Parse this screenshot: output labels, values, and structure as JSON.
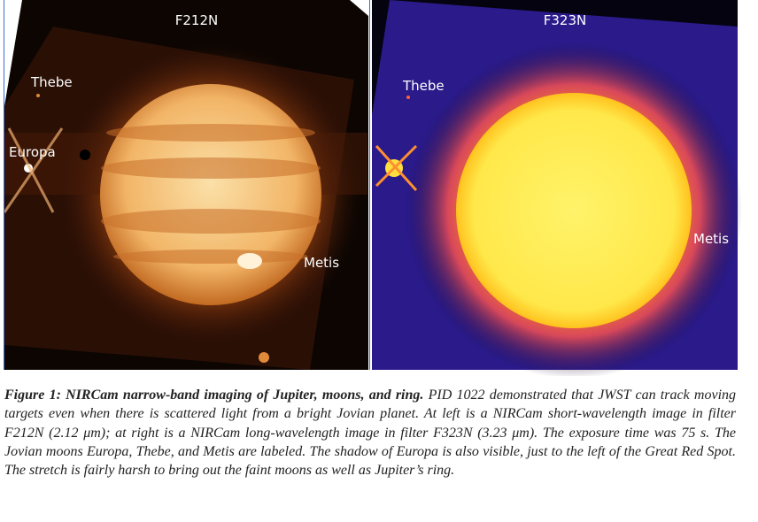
{
  "figure": {
    "panels": [
      {
        "title": "F212N",
        "labels": [
          "Thebe",
          "Europa",
          "Metis"
        ]
      },
      {
        "title": "F323N",
        "labels": [
          "Thebe",
          "Metis"
        ]
      }
    ]
  },
  "caption": {
    "label": "Figure 1: NIRCam narrow-band imaging of Jupiter, moons, and ring.",
    "text": "PID 1022 demonstrated that JWST can track moving targets even when there is scattered light from a bright Jovian planet. At left is a NIRCam short-wavelength image in filter F212N (2.12 μm); at right is a NIRCam long-wavelength image in filter F323N (3.23 μm). The exposure time was 75 s. The Jovian moons Europa, Thebe, and Metis are labeled. The shadow of Europa is also visible, just to the left of the Great Red Spot. The stretch is fairly harsh to bring out the faint moons as well as Jupiter’s ring."
  }
}
